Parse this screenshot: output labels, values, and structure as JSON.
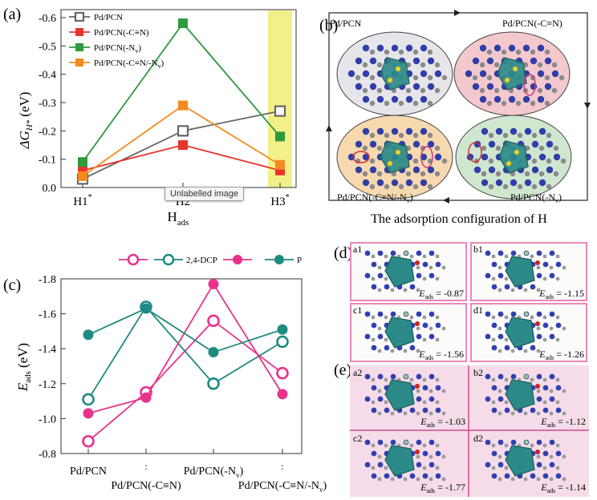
{
  "panel_a": {
    "label": "(a)",
    "xlabel_main": "H",
    "xlabel_sub": "ads",
    "ylabel_main": "ΔG",
    "ylabel_sub": "H*",
    "ylabel_unit": "(eV)",
    "tooltip": "Unlabelled image"
  },
  "panel_b": {
    "label": "(b)",
    "caption": "The adsorption configuration of H",
    "quadrants": [
      "Pd/PCN",
      "Pd/PCN(-C≡N)",
      "Pd/PCN(-C≡N/-N",
      "Pd/PCN(-N"
    ],
    "quadrant_suffix": ")",
    "quadrant_sub": "v",
    "colors": [
      "#e6e6ea",
      "#f4c9cd",
      "#f7d9b0",
      "#cfe6cf"
    ]
  },
  "panel_c": {
    "label": "(c)",
    "ylabel_main": "E",
    "ylabel_sub": "ads",
    "ylabel_unit": "(eV)",
    "xticks": [
      "Pd/PCN",
      "Pd/PCN(-C≡N)",
      "Pd/PCN(-N",
      "Pd/PCN(-C≡N/-N"
    ],
    "xtick_sub": "v",
    "xtick_suffix": ")"
  },
  "panel_d": {
    "label": "(d)",
    "cells": [
      {
        "id": "a1",
        "value": "-0.87"
      },
      {
        "id": "b1",
        "value": "-1.15"
      },
      {
        "id": "c1",
        "value": "-1.56"
      },
      {
        "id": "d1",
        "value": "-1.26"
      }
    ],
    "energy_label": "E",
    "energy_sub": "ads",
    "eq": " = ",
    "border_color": "#e97ab0"
  },
  "panel_e": {
    "label": "(e)",
    "cells": [
      {
        "id": "a2",
        "value": "-1.03"
      },
      {
        "id": "b2",
        "value": "-1.12"
      },
      {
        "id": "c2",
        "value": "-1.77"
      },
      {
        "id": "d2",
        "value": "-1.14"
      }
    ],
    "bg_color": "#f5dce8",
    "divider_color": "#d44a8a"
  },
  "chart_data": [
    {
      "type": "line",
      "panel": "a",
      "categories": [
        "H1*",
        "H2",
        "H3*"
      ],
      "ylim": [
        0,
        -0.6
      ],
      "yticks": [
        "-0.6",
        "-0.5",
        "-0.4",
        "-0.3",
        "-0.2",
        "-0.1",
        "0.0"
      ],
      "highlight_category": "H3*",
      "highlight_color": "#f3f08a",
      "ylabel": "ΔGH* (eV)",
      "xlabel": "Hads",
      "series": [
        {
          "name": "Pd/PCN",
          "color": "#666666",
          "marker": "open-square",
          "values": [
            -0.03,
            -0.2,
            -0.27
          ]
        },
        {
          "name": "Pd/PCN(-C≡N)",
          "color": "#e8342a",
          "marker": "square",
          "values": [
            -0.06,
            -0.15,
            -0.06
          ]
        },
        {
          "name": "Pd/PCN(-N",
          "name_sub": "v",
          "name_suffix": ")",
          "color": "#2d9a3b",
          "marker": "square",
          "values": [
            -0.09,
            -0.58,
            -0.18
          ]
        },
        {
          "name": "Pd/PCN(-C≡N/-N",
          "name_sub": "v",
          "name_suffix": ")",
          "color": "#f58a1f",
          "marker": "square",
          "values": [
            -0.04,
            -0.29,
            -0.08
          ]
        }
      ]
    },
    {
      "type": "line",
      "panel": "c",
      "categories": [
        "Pd/PCN",
        "Pd/PCN(-C≡N)",
        "Pd/PCN(-Nv)",
        "Pd/PCN(-C≡N/-Nv)"
      ],
      "ylim": [
        -0.8,
        -1.8
      ],
      "yticks": [
        "-1.8",
        "-1.6",
        "-1.4",
        "-1.2",
        "-1.0",
        "-0.8"
      ],
      "ylabel": "Eads (eV)",
      "series": [
        {
          "name": "",
          "color": "#e8338c",
          "marker": "open-circle",
          "values": [
            -0.87,
            -1.15,
            -1.56,
            -1.26
          ]
        },
        {
          "name": "2,4-DCP",
          "color": "#1f8a82",
          "marker": "open-circle",
          "values": [
            -1.11,
            -1.64,
            -1.2,
            -1.44
          ]
        },
        {
          "name": "",
          "color": "#e8338c",
          "marker": "circle",
          "values": [
            -1.03,
            -1.12,
            -1.77,
            -1.14
          ]
        },
        {
          "name": "P",
          "color": "#1f8a82",
          "marker": "circle",
          "values": [
            -1.48,
            -1.63,
            -1.38,
            -1.51
          ]
        }
      ]
    }
  ]
}
